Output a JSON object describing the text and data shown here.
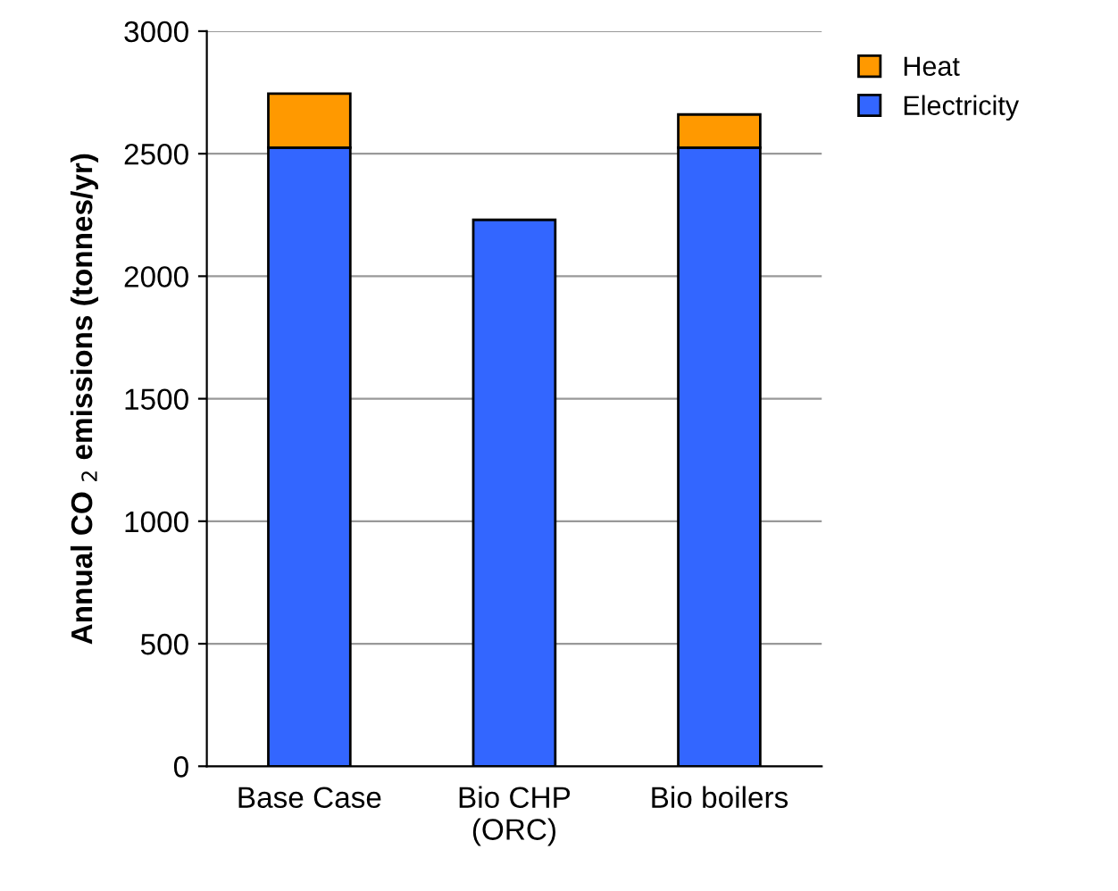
{
  "chart_data": {
    "type": "bar",
    "stacked": true,
    "categories": [
      "Base Case",
      "Bio CHP\n(ORC)",
      "Bio boilers"
    ],
    "series": [
      {
        "name": "Electricity",
        "color": "#3366ff",
        "values": [
          2525,
          2230,
          2525
        ]
      },
      {
        "name": "Heat",
        "color": "#ff9900",
        "values": [
          220,
          null,
          135
        ]
      }
    ],
    "ylabel": "Annual CO $_{2}$ emissions (tonnes/yr)",
    "ylim": [
      0,
      3000
    ],
    "yticks": [
      0,
      500,
      1000,
      1500,
      2000,
      2500,
      3000
    ],
    "grid": "y",
    "legend": "top right"
  }
}
